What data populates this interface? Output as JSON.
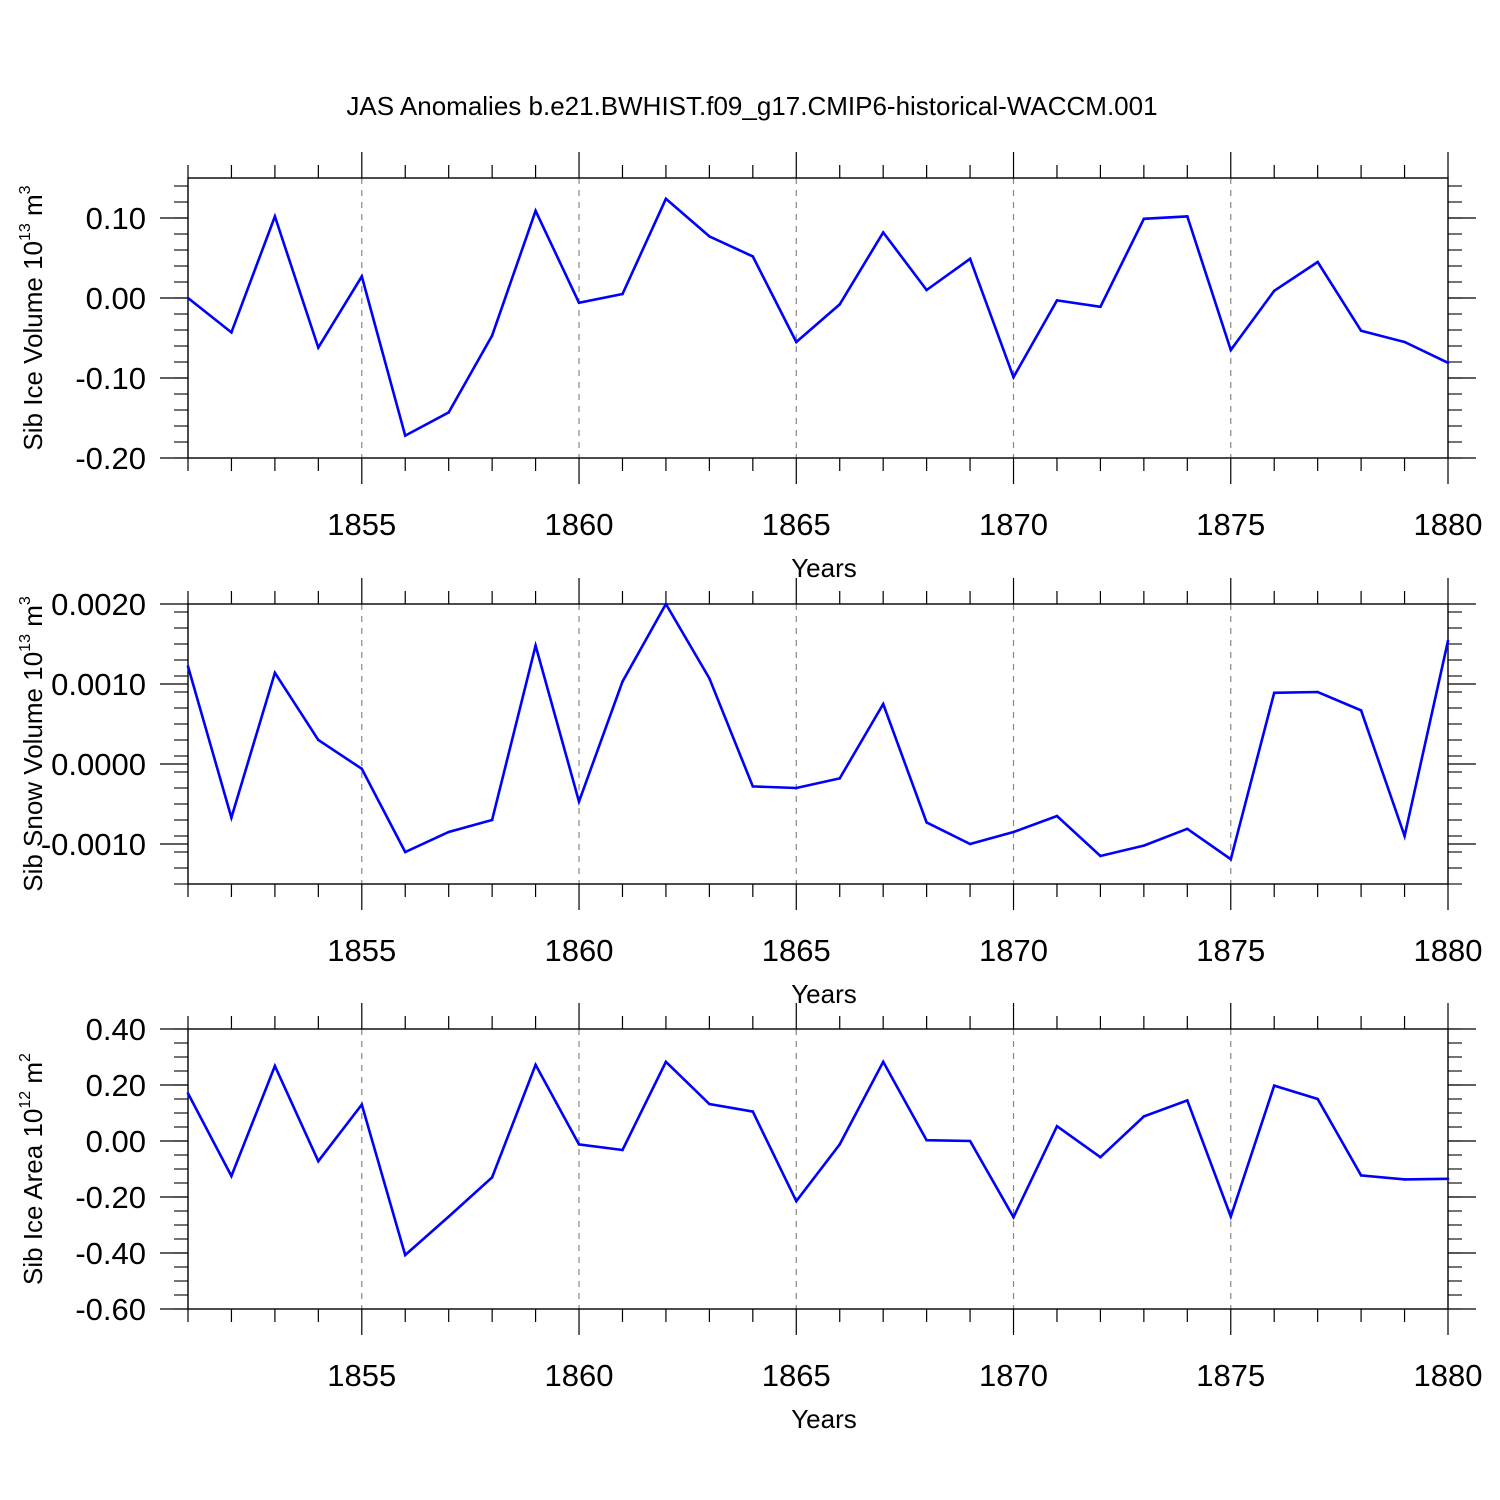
{
  "title": "JAS Anomalies b.e21.BWHIST.f09_g17.CMIP6-historical-WACCM.001",
  "colors": {
    "line": "#0000ff",
    "axis": "#000000",
    "grid": "#888888"
  },
  "chart_data": [
    {
      "type": "line",
      "ylabel": {
        "prefix": "Sib Ice Volume 10",
        "exp": "13",
        "unit": " m",
        "unit_exp": "3"
      },
      "xlabel": "Years",
      "xlim": [
        1851,
        1880
      ],
      "ylim": [
        -0.2,
        0.15
      ],
      "xticks": [
        1855,
        1860,
        1865,
        1870,
        1875,
        1880
      ],
      "xtick_labels": [
        "1855",
        "1860",
        "1865",
        "1870",
        "1875",
        "1880"
      ],
      "yticks": [
        -0.2,
        -0.1,
        0.0,
        0.1
      ],
      "ytick_labels": [
        "-0.20",
        "-0.10",
        "0.00",
        "0.10"
      ],
      "yminor_step": 0.02,
      "x": [
        1851,
        1852,
        1853,
        1854,
        1855,
        1856,
        1857,
        1858,
        1859,
        1860,
        1861,
        1862,
        1863,
        1864,
        1865,
        1866,
        1867,
        1868,
        1869,
        1870,
        1871,
        1872,
        1873,
        1874,
        1875,
        1876,
        1877,
        1878,
        1879,
        1880
      ],
      "series": [
        {
          "name": "Sib Ice Volume",
          "values": [
            0.0,
            -0.043,
            0.102,
            -0.062,
            0.027,
            -0.172,
            -0.143,
            -0.047,
            0.109,
            -0.006,
            0.005,
            0.124,
            0.077,
            0.052,
            -0.055,
            -0.008,
            0.082,
            0.01,
            0.049,
            -0.099,
            -0.003,
            -0.011,
            0.099,
            0.102,
            -0.065,
            0.009,
            0.045,
            -0.041,
            -0.055,
            -0.081
          ]
        }
      ]
    },
    {
      "type": "line",
      "ylabel": {
        "prefix": "Sib Snow Volume 10",
        "exp": "13",
        "unit": " m",
        "unit_exp": "3"
      },
      "xlabel": "Years",
      "xlim": [
        1851,
        1880
      ],
      "ylim": [
        -0.0015,
        0.002
      ],
      "xticks": [
        1855,
        1860,
        1865,
        1870,
        1875,
        1880
      ],
      "xtick_labels": [
        "1855",
        "1860",
        "1865",
        "1870",
        "1875",
        "1880"
      ],
      "yticks": [
        -0.001,
        0.0,
        0.001,
        0.002
      ],
      "ytick_labels": [
        "-0.0010",
        "0.0000",
        "0.0010",
        "0.0020"
      ],
      "yminor_step": 0.0002,
      "x": [
        1851,
        1852,
        1853,
        1854,
        1855,
        1856,
        1857,
        1858,
        1859,
        1860,
        1861,
        1862,
        1863,
        1864,
        1865,
        1866,
        1867,
        1868,
        1869,
        1870,
        1871,
        1872,
        1873,
        1874,
        1875,
        1876,
        1877,
        1878,
        1879,
        1880
      ],
      "series": [
        {
          "name": "Sib Snow Volume",
          "values": [
            0.00122,
            -0.00067,
            0.00114,
            0.0003,
            -6e-05,
            -0.0011,
            -0.00085,
            -0.0007,
            0.00148,
            -0.00047,
            0.00103,
            0.002,
            0.00107,
            -0.00028,
            -0.0003,
            -0.00018,
            0.00075,
            -0.00073,
            -0.001,
            -0.00085,
            -0.00065,
            -0.00115,
            -0.00102,
            -0.00081,
            -0.00119,
            0.00089,
            0.0009,
            0.00067,
            -0.0009,
            0.00154
          ]
        }
      ]
    },
    {
      "type": "line",
      "ylabel": {
        "prefix": "Sib Ice Area 10",
        "exp": "12",
        "unit": " m",
        "unit_exp": "2"
      },
      "xlabel": "Years",
      "xlim": [
        1851,
        1880
      ],
      "ylim": [
        -0.6,
        0.4
      ],
      "xticks": [
        1855,
        1860,
        1865,
        1870,
        1875,
        1880
      ],
      "xtick_labels": [
        "1855",
        "1860",
        "1865",
        "1870",
        "1875",
        "1880"
      ],
      "yticks": [
        -0.6,
        -0.4,
        -0.2,
        0.0,
        0.2,
        0.4
      ],
      "ytick_labels": [
        "-0.60",
        "-0.40",
        "-0.20",
        "0.00",
        "0.20",
        "0.40"
      ],
      "yminor_step": 0.05,
      "x": [
        1851,
        1852,
        1853,
        1854,
        1855,
        1856,
        1857,
        1858,
        1859,
        1860,
        1861,
        1862,
        1863,
        1864,
        1865,
        1866,
        1867,
        1868,
        1869,
        1870,
        1871,
        1872,
        1873,
        1874,
        1875,
        1876,
        1877,
        1878,
        1879,
        1880
      ],
      "series": [
        {
          "name": "Sib Ice Area",
          "values": [
            0.17,
            -0.125,
            0.268,
            -0.072,
            0.13,
            -0.407,
            -0.27,
            -0.13,
            0.272,
            -0.012,
            -0.032,
            0.283,
            0.132,
            0.105,
            -0.215,
            -0.012,
            0.283,
            0.003,
            0.0,
            -0.272,
            0.053,
            -0.058,
            0.088,
            0.145,
            -0.27,
            0.198,
            0.15,
            -0.123,
            -0.137,
            -0.135
          ]
        }
      ]
    }
  ]
}
